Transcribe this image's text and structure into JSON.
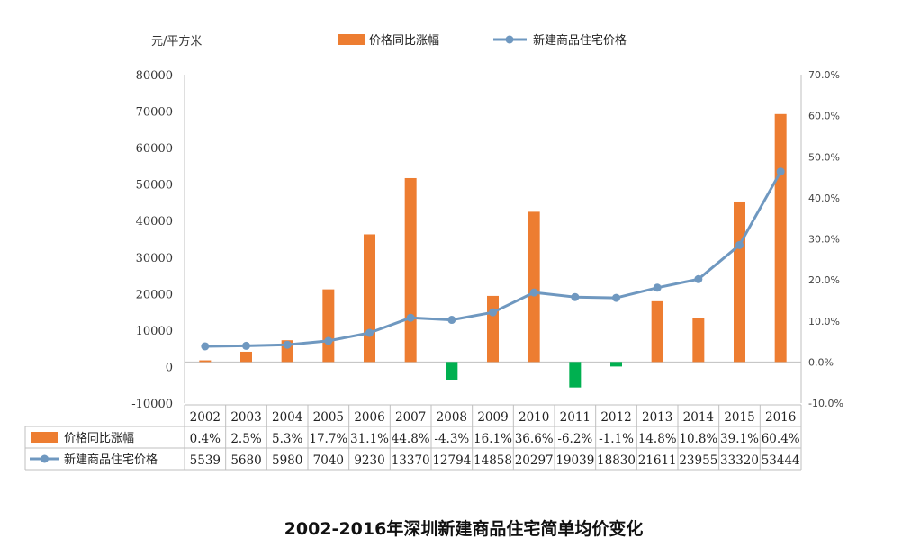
{
  "chart_data": {
    "type": "bar+line",
    "title": "2002-2016年深圳新建商品住宅简单均价变化",
    "left_axis_unit": "元/平方米",
    "categories": [
      "2002",
      "2003",
      "2004",
      "2005",
      "2006",
      "2007",
      "2008",
      "2009",
      "2010",
      "2011",
      "2012",
      "2013",
      "2014",
      "2015",
      "2016"
    ],
    "series": [
      {
        "name": "价格同比涨幅",
        "type": "bar",
        "axis": "right",
        "values": [
          0.4,
          2.5,
          5.3,
          17.7,
          31.1,
          44.8,
          -4.3,
          16.1,
          36.6,
          -6.2,
          -1.1,
          14.8,
          10.8,
          39.1,
          60.4
        ],
        "labels": [
          "0.4%",
          "2.5%",
          "5.3%",
          "17.7%",
          "31.1%",
          "44.8%",
          "-4.3%",
          "16.1%",
          "36.6%",
          "-6.2%",
          "-1.1%",
          "14.8%",
          "10.8%",
          "39.1%",
          "60.4%"
        ]
      },
      {
        "name": "新建商品住宅价格",
        "type": "line",
        "axis": "left",
        "values": [
          5539,
          5680,
          5980,
          7040,
          9230,
          13370,
          12794,
          14858,
          20297,
          19039,
          18830,
          21611,
          23955,
          33320,
          53444
        ],
        "labels": [
          "5539",
          "5680",
          "5980",
          "7040",
          "9230",
          "13370",
          "12794",
          "14858",
          "20297",
          "19039",
          "18830",
          "21611",
          "23955",
          "33320",
          "53444"
        ]
      }
    ],
    "left_ylim": [
      -10000,
      80000
    ],
    "left_ticks": [
      "80000",
      "70000",
      "60000",
      "50000",
      "40000",
      "30000",
      "20000",
      "10000",
      "0",
      "-10000"
    ],
    "right_ylim": [
      -10.0,
      70.0
    ],
    "right_ticks": [
      "70.0%",
      "60.0%",
      "50.0%",
      "40.0%",
      "30.0%",
      "20.0%",
      "10.0%",
      "0.0%",
      "-10.0%"
    ],
    "legend_position": "top-center"
  },
  "colors": {
    "bar_positive": "#ed7d31",
    "bar_negative": "#00b050",
    "line": "#6f98c0",
    "axis": "#bfbfbf"
  }
}
